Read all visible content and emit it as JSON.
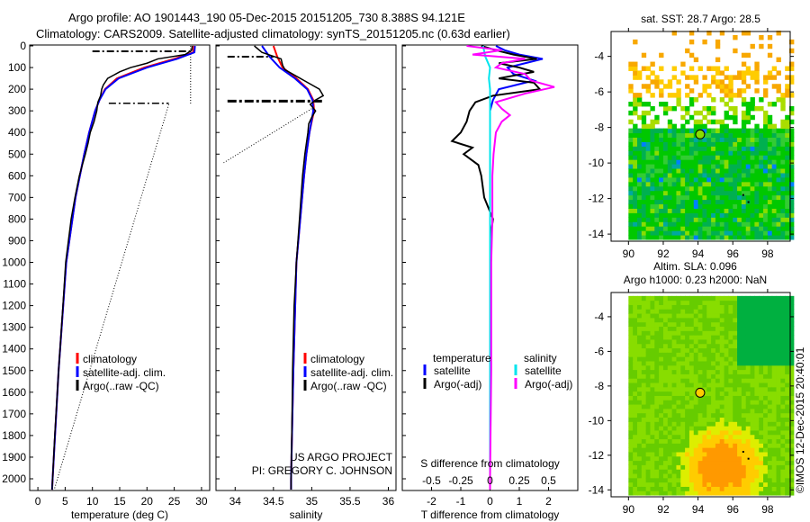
{
  "title_line1": "Argo profile: AO 1901443_190 05-Dec-2015 20151205_730 8.388S 94.121E",
  "title_line2": "Climatology: CARS2009. Satellite-adjusted climatology: synTS_20151205.nc (0.63d earlier)",
  "credit": "US ARGO PROJECT",
  "pi": "PI: GREGORY C. JOHNSON",
  "watermark": "©IMOS 12-Dec-2015 20:40:01",
  "colors": {
    "climatology": "#ff0000",
    "satellite": "#0000ff",
    "argo": "#000000",
    "sal_satellite": "#00e5ee",
    "sal_argo": "#ff00ff"
  },
  "chart_data": [
    {
      "type": "line",
      "name": "temperature-profile",
      "xlabel": "temperature (deg C)",
      "xlim": [
        -1.5,
        31.5
      ],
      "xticks": [
        "0",
        "5",
        "10",
        "15",
        "20",
        "25",
        "30"
      ],
      "xtick_values": [
        0,
        5,
        10,
        15,
        20,
        25,
        30
      ],
      "ylim": [
        0,
        2060
      ],
      "yticks": [
        "0",
        "100",
        "200",
        "300",
        "400",
        "500",
        "600",
        "700",
        "800",
        "900",
        "1000",
        "1100",
        "1200",
        "1300",
        "1400",
        "1500",
        "1600",
        "1700",
        "1800",
        "1900",
        "2000"
      ],
      "ytick_values": [
        0,
        100,
        200,
        300,
        400,
        500,
        600,
        700,
        800,
        900,
        1000,
        1100,
        1200,
        1300,
        1400,
        1500,
        1600,
        1700,
        1800,
        1900,
        2000
      ],
      "legend": [
        "climatology",
        "satellite-adj. clim.",
        "Argo(..raw -QC)"
      ],
      "series": [
        {
          "name": "climatology",
          "depth": [
            0,
            30,
            60,
            100,
            150,
            200,
            250,
            300,
            400,
            500,
            700,
            1000,
            1500,
            2000,
            2050
          ],
          "values": [
            28.6,
            28.5,
            25,
            19.5,
            14.5,
            12.3,
            11.3,
            10.5,
            9.4,
            8.5,
            6.9,
            5.2,
            3.8,
            2.7,
            2.6
          ]
        },
        {
          "name": "satellite-adj. clim.",
          "depth": [
            0,
            30,
            60,
            100,
            150,
            200,
            250,
            300,
            400,
            500,
            700,
            1000,
            1500,
            2000,
            2050
          ],
          "values": [
            28.8,
            28.7,
            25.5,
            20,
            14.8,
            12.4,
            11.3,
            10.5,
            9.4,
            8.5,
            6.9,
            5.2,
            3.8,
            2.7,
            2.6
          ]
        },
        {
          "name": "Argo(..raw -QC)",
          "depth": [
            0,
            20,
            40,
            60,
            80,
            100,
            120,
            150,
            180,
            200,
            230,
            260,
            300,
            350,
            400,
            450,
            500,
            600,
            700,
            800,
            900,
            1000,
            1200,
            1500,
            1800,
            2000,
            2050
          ],
          "values": [
            28.3,
            28.2,
            27,
            22,
            20,
            17,
            15,
            12.8,
            12,
            11.7,
            11.5,
            11,
            10.8,
            10.3,
            9.6,
            9.2,
            8.7,
            7.6,
            6.8,
            6.1,
            5.6,
            5.1,
            4.6,
            3.8,
            3.1,
            2.7,
            2.6
          ]
        }
      ],
      "range_lines": {
        "top_depth": 25,
        "top_range": [
          10,
          28
        ],
        "mid_depth": 265,
        "mid_range": [
          13,
          24
        ],
        "max_dotted": 28,
        "max_dotted_depth": [
          0,
          270
        ],
        "min_dotted": [
          [
            24,
            270
          ],
          [
            3,
            2050
          ]
        ]
      }
    },
    {
      "type": "line",
      "name": "salinity-profile",
      "xlabel": "salinity",
      "xlim": [
        33.75,
        36.1
      ],
      "xticks": [
        "34",
        "34.5",
        "35",
        "35.5",
        "36"
      ],
      "xtick_values": [
        34,
        34.5,
        35,
        35.5,
        36
      ],
      "ylim": [
        0,
        2060
      ],
      "legend": [
        "climatology",
        "satellite-adj. clim.",
        "Argo(..raw -QC)"
      ],
      "series": [
        {
          "name": "climatology",
          "depth": [
            0,
            50,
            100,
            150,
            200,
            250,
            300,
            400,
            500,
            600,
            800,
            1000,
            1500,
            2000,
            2050
          ],
          "values": [
            34.5,
            34.55,
            34.62,
            34.8,
            34.95,
            35.02,
            35.03,
            34.97,
            34.93,
            34.9,
            34.85,
            34.8,
            34.76,
            34.73,
            34.73
          ]
        },
        {
          "name": "satellite-adj. clim.",
          "depth": [
            0,
            50,
            100,
            150,
            200,
            250,
            300,
            400,
            500,
            600,
            800,
            1000,
            1500,
            2000,
            2050
          ],
          "values": [
            34.35,
            34.45,
            34.58,
            34.78,
            34.94,
            35.01,
            35.02,
            34.97,
            34.93,
            34.9,
            34.85,
            34.8,
            34.76,
            34.73,
            34.73
          ]
        },
        {
          "name": "Argo(..raw -QC)",
          "depth": [
            0,
            30,
            60,
            90,
            110,
            140,
            170,
            200,
            230,
            250,
            270,
            300,
            330,
            360,
            400,
            450,
            500,
            600,
            700,
            800,
            900,
            1000,
            1200,
            1500,
            1800,
            2000,
            2050
          ],
          "values": [
            34.25,
            34.35,
            34.6,
            34.62,
            34.65,
            34.8,
            34.95,
            35.1,
            35.15,
            35.05,
            34.98,
            35.05,
            35.0,
            34.96,
            34.95,
            34.93,
            34.91,
            34.88,
            34.86,
            34.84,
            34.82,
            34.8,
            34.77,
            34.75,
            34.74,
            34.73,
            34.73
          ]
        }
      ],
      "range_lines": {
        "top_depth": 50,
        "top_range": [
          33.9,
          34.5
        ],
        "mid_depth": 255,
        "mid_range": [
          33.9,
          35.15
        ],
        "dotted": [
          [
            35.0,
            290
          ],
          [
            33.85,
            540
          ]
        ]
      }
    },
    {
      "type": "line",
      "name": "difference-profile",
      "xlabel": "T difference from climatology",
      "xlabel2": "S difference from climatology",
      "xlim": [
        -3,
        3
      ],
      "xticks": [
        "-2",
        "-1",
        "0",
        "1",
        "2"
      ],
      "xtick_values": [
        -2,
        -1,
        0,
        1,
        2
      ],
      "x2ticks": [
        "-0.5",
        "-0.25",
        "0",
        "0.25",
        "0.5"
      ],
      "x2tick_values": [
        -0.5,
        -0.25,
        0,
        0.25,
        0.5
      ],
      "legend_headers": [
        "temperature",
        "salinity"
      ],
      "legend": [
        "satellite",
        "Argo(-adj)",
        "satellite",
        "Argo(-adj)"
      ],
      "series": [
        {
          "name": "T satellite",
          "axis": "T",
          "depth": [
            0,
            20,
            40,
            60,
            80,
            100,
            130,
            160,
            200,
            250,
            300,
            400,
            2050
          ],
          "values": [
            0.2,
            0.5,
            1.0,
            1.8,
            1.2,
            0.6,
            0.8,
            1.5,
            0.3,
            0.1,
            0,
            0,
            0
          ]
        },
        {
          "name": "T Argo(-adj)",
          "axis": "T",
          "depth": [
            0,
            20,
            40,
            60,
            80,
            100,
            120,
            150,
            170,
            200,
            230,
            260,
            300,
            350,
            400,
            440,
            470,
            500,
            550,
            600,
            700,
            800,
            900,
            1000,
            1200,
            1500,
            2000,
            2050
          ],
          "values": [
            -0.3,
            0.2,
            0.8,
            1.6,
            0.3,
            1.0,
            1.5,
            0.3,
            1.5,
            1.7,
            0.1,
            -0.5,
            -0.7,
            -0.8,
            -1.0,
            -1.3,
            -0.6,
            -0.9,
            -0.4,
            -0.3,
            -0.2,
            0.1,
            0,
            0,
            0,
            0,
            0,
            0
          ]
        },
        {
          "name": "S satellite",
          "axis": "S",
          "depth": [
            0,
            50,
            100,
            150,
            200,
            300,
            400,
            2050
          ],
          "values": [
            -0.06,
            -0.04,
            0,
            -0.01,
            0,
            0,
            0,
            0
          ]
        },
        {
          "name": "S Argo(-adj)",
          "axis": "S",
          "depth": [
            0,
            20,
            40,
            60,
            80,
            100,
            130,
            160,
            190,
            220,
            260,
            290,
            320,
            350,
            400,
            500,
            600,
            800,
            1000,
            1500,
            2000,
            2050
          ],
          "values": [
            -0.2,
            0.1,
            -0.15,
            0.3,
            0.1,
            0.05,
            0.3,
            0.35,
            0.55,
            0.3,
            0.05,
            0.1,
            0.17,
            0.1,
            0.05,
            0.03,
            0.02,
            0.02,
            0.01,
            0.01,
            0.0,
            0.0
          ]
        }
      ]
    },
    {
      "type": "heatmap",
      "name": "sst-map",
      "title": "sat. SST: 28.7 Argo: 28.5",
      "xlim": [
        89,
        99.3
      ],
      "ylim": [
        -14.4,
        -2.6
      ],
      "xticks": [
        "90",
        "92",
        "94",
        "96",
        "98"
      ],
      "xtick_values": [
        90,
        92,
        94,
        96,
        98
      ],
      "yticks": [
        "-4",
        "-6",
        "-8",
        "-10",
        "-12",
        "-14"
      ],
      "ytick_values": [
        -4,
        -6,
        -8,
        -10,
        -12,
        -14
      ],
      "profile_location": [
        94.121,
        -8.388
      ],
      "trajectory": [
        [
          96.6,
          -11.8
        ],
        [
          96.9,
          -12.2
        ]
      ]
    },
    {
      "type": "heatmap",
      "name": "sla-map",
      "title": "Altim. SLA: 0.096",
      "subtitle": "Argo h1000: 0.23 h2000: NaN",
      "xlim": [
        89,
        99.3
      ],
      "ylim": [
        -14.4,
        -2.6
      ],
      "xticks": [
        "90",
        "92",
        "94",
        "96",
        "98"
      ],
      "xtick_values": [
        90,
        92,
        94,
        96,
        98
      ],
      "yticks": [
        "-4",
        "-6",
        "-8",
        "-10",
        "-12",
        "-14"
      ],
      "ytick_values": [
        -4,
        -6,
        -8,
        -10,
        -12,
        -14
      ],
      "profile_location": [
        94.121,
        -8.388
      ],
      "trajectory": [
        [
          96.6,
          -11.8
        ],
        [
          96.9,
          -12.2
        ]
      ]
    }
  ]
}
